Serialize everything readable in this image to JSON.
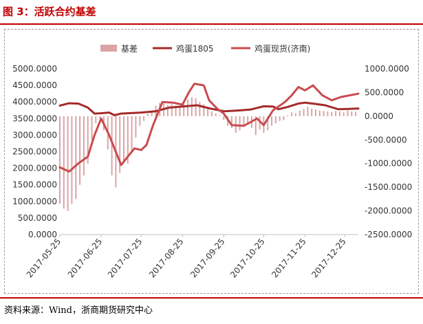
{
  "figure": {
    "title": "图 3：活跃合约基差",
    "source": "资料来源：Wind，浙商期货研究中心"
  },
  "colors": {
    "basis": "#dca3a6",
    "egg1805": "#a52a2a",
    "spot": "#c94a4d",
    "title": "#c00000"
  },
  "chart_data": {
    "type": "bar+line",
    "title": "",
    "legend_position": "top",
    "dates": [
      "2017-05-25",
      "2017-06-25",
      "2017-07-25",
      "2017-08-25",
      "2017-09-25",
      "2017-10-25",
      "2017-11-25",
      "2017-12-25"
    ],
    "x_range": [
      "2017-05-25",
      "2018-01-04"
    ],
    "y_left": {
      "range": [
        0,
        5000
      ],
      "ticks": [
        0,
        500,
        1000,
        1500,
        2000,
        2500,
        3000,
        3500,
        4000,
        4500,
        5000
      ],
      "tick_labels": [
        "0.0000",
        "500.0000",
        "1000.0000",
        "1500.0000",
        "2000.0000",
        "2500.0000",
        "3000.0000",
        "3500.0000",
        "4000.0000",
        "4500.0000",
        "5000.0000"
      ]
    },
    "y_right": {
      "range": [
        -2500,
        1000
      ],
      "ticks": [
        -2500,
        -2000,
        -1500,
        -1000,
        -500,
        0,
        500,
        1000
      ],
      "tick_labels": [
        "-2500.0000",
        "-2000.0000",
        "-1500.0000",
        "-1000.0000",
        "-500.0000",
        "0.0000",
        "500.0000",
        "1000.0000"
      ]
    },
    "series": [
      {
        "name": "基差",
        "kind": "bar",
        "axis": "right",
        "points": [
          [
            "2017-05-25",
            -1850
          ],
          [
            "2017-05-28",
            -1950
          ],
          [
            "2017-05-31",
            -2000
          ],
          [
            "2017-06-03",
            -1850
          ],
          [
            "2017-06-06",
            -1750
          ],
          [
            "2017-06-09",
            -1450
          ],
          [
            "2017-06-12",
            -1250
          ],
          [
            "2017-06-15",
            -1000
          ],
          [
            "2017-06-18",
            -500
          ],
          [
            "2017-06-21",
            -150
          ],
          [
            "2017-06-24",
            -50
          ],
          [
            "2017-06-27",
            -300
          ],
          [
            "2017-06-30",
            -700
          ],
          [
            "2017-07-03",
            -1250
          ],
          [
            "2017-07-06",
            -1500
          ],
          [
            "2017-07-09",
            -1200
          ],
          [
            "2017-07-12",
            -1000
          ],
          [
            "2017-07-15",
            -1000
          ],
          [
            "2017-07-18",
            -750
          ],
          [
            "2017-07-21",
            -450
          ],
          [
            "2017-07-24",
            -200
          ],
          [
            "2017-07-27",
            -100
          ],
          [
            "2017-07-30",
            50
          ],
          [
            "2017-08-02",
            120
          ],
          [
            "2017-08-05",
            220
          ],
          [
            "2017-08-08",
            280
          ],
          [
            "2017-08-11",
            270
          ],
          [
            "2017-08-14",
            230
          ],
          [
            "2017-08-17",
            250
          ],
          [
            "2017-08-20",
            220
          ],
          [
            "2017-08-23",
            180
          ],
          [
            "2017-08-26",
            260
          ],
          [
            "2017-08-29",
            350
          ],
          [
            "2017-09-01",
            400
          ],
          [
            "2017-09-04",
            380
          ],
          [
            "2017-09-07",
            300
          ],
          [
            "2017-09-10",
            250
          ],
          [
            "2017-09-13",
            170
          ],
          [
            "2017-09-16",
            100
          ],
          [
            "2017-09-19",
            60
          ],
          [
            "2017-09-22",
            20
          ],
          [
            "2017-09-25",
            -80
          ],
          [
            "2017-09-28",
            -200
          ],
          [
            "2017-10-01",
            -250
          ],
          [
            "2017-10-04",
            -350
          ],
          [
            "2017-10-07",
            -300
          ],
          [
            "2017-10-10",
            -200
          ],
          [
            "2017-10-13",
            -150
          ],
          [
            "2017-10-16",
            -250
          ],
          [
            "2017-10-19",
            -400
          ],
          [
            "2017-10-22",
            -280
          ],
          [
            "2017-10-25",
            -350
          ],
          [
            "2017-10-28",
            -300
          ],
          [
            "2017-10-31",
            -200
          ],
          [
            "2017-11-03",
            -150
          ],
          [
            "2017-11-06",
            -100
          ],
          [
            "2017-11-09",
            -80
          ],
          [
            "2017-11-12",
            20
          ],
          [
            "2017-11-15",
            80
          ],
          [
            "2017-11-18",
            60
          ],
          [
            "2017-11-21",
            120
          ],
          [
            "2017-11-24",
            150
          ],
          [
            "2017-11-27",
            200
          ],
          [
            "2017-11-30",
            160
          ],
          [
            "2017-12-03",
            140
          ],
          [
            "2017-12-06",
            120
          ],
          [
            "2017-12-09",
            110
          ],
          [
            "2017-12-12",
            100
          ],
          [
            "2017-12-15",
            90
          ],
          [
            "2017-12-18",
            110
          ],
          [
            "2017-12-21",
            100
          ],
          [
            "2017-12-24",
            80
          ],
          [
            "2017-12-27",
            120
          ],
          [
            "2017-12-30",
            100
          ],
          [
            "2018-01-02",
            90
          ]
        ]
      },
      {
        "name": "鸡蛋1805",
        "kind": "line",
        "axis": "left",
        "points": [
          [
            "2017-05-25",
            3890
          ],
          [
            "2017-06-01",
            3960
          ],
          [
            "2017-06-08",
            3950
          ],
          [
            "2017-06-15",
            3830
          ],
          [
            "2017-06-20",
            3650
          ],
          [
            "2017-06-25",
            3660
          ],
          [
            "2017-07-01",
            3680
          ],
          [
            "2017-07-05",
            3600
          ],
          [
            "2017-07-10",
            3650
          ],
          [
            "2017-07-25",
            3680
          ],
          [
            "2017-08-05",
            3720
          ],
          [
            "2017-08-15",
            3830
          ],
          [
            "2017-08-25",
            3860
          ],
          [
            "2017-09-05",
            3900
          ],
          [
            "2017-09-15",
            3800
          ],
          [
            "2017-09-25",
            3720
          ],
          [
            "2017-10-05",
            3740
          ],
          [
            "2017-10-15",
            3770
          ],
          [
            "2017-10-25",
            3870
          ],
          [
            "2017-11-01",
            3860
          ],
          [
            "2017-11-05",
            3780
          ],
          [
            "2017-11-12",
            3850
          ],
          [
            "2017-11-20",
            3950
          ],
          [
            "2017-11-25",
            3980
          ],
          [
            "2017-12-01",
            3950
          ],
          [
            "2017-12-10",
            3900
          ],
          [
            "2017-12-20",
            3780
          ],
          [
            "2018-01-04",
            3800
          ]
        ]
      },
      {
        "name": "鸡蛋现货(济南)",
        "kind": "line",
        "axis": "left",
        "points": [
          [
            "2017-05-25",
            2030
          ],
          [
            "2017-06-01",
            1900
          ],
          [
            "2017-06-08",
            2150
          ],
          [
            "2017-06-15",
            2350
          ],
          [
            "2017-06-20",
            3000
          ],
          [
            "2017-06-25",
            3500
          ],
          [
            "2017-07-01",
            3000
          ],
          [
            "2017-07-05",
            2600
          ],
          [
            "2017-07-10",
            2100
          ],
          [
            "2017-07-15",
            2350
          ],
          [
            "2017-07-20",
            2600
          ],
          [
            "2017-07-25",
            2550
          ],
          [
            "2017-07-29",
            2700
          ],
          [
            "2017-08-03",
            3300
          ],
          [
            "2017-08-10",
            4000
          ],
          [
            "2017-08-18",
            3980
          ],
          [
            "2017-08-25",
            3920
          ],
          [
            "2017-08-30",
            4300
          ],
          [
            "2017-09-03",
            4550
          ],
          [
            "2017-09-10",
            4500
          ],
          [
            "2017-09-14",
            4050
          ],
          [
            "2017-09-20",
            3800
          ],
          [
            "2017-09-25",
            3650
          ],
          [
            "2017-10-01",
            3300
          ],
          [
            "2017-10-10",
            3280
          ],
          [
            "2017-10-20",
            3500
          ],
          [
            "2017-10-25",
            3300
          ],
          [
            "2017-11-01",
            3750
          ],
          [
            "2017-11-10",
            4000
          ],
          [
            "2017-11-15",
            4200
          ],
          [
            "2017-11-20",
            4450
          ],
          [
            "2017-11-25",
            4350
          ],
          [
            "2017-12-01",
            4500
          ],
          [
            "2017-12-08",
            4200
          ],
          [
            "2017-12-15",
            4050
          ],
          [
            "2017-12-22",
            4150
          ],
          [
            "2018-01-04",
            4250
          ]
        ]
      }
    ]
  }
}
